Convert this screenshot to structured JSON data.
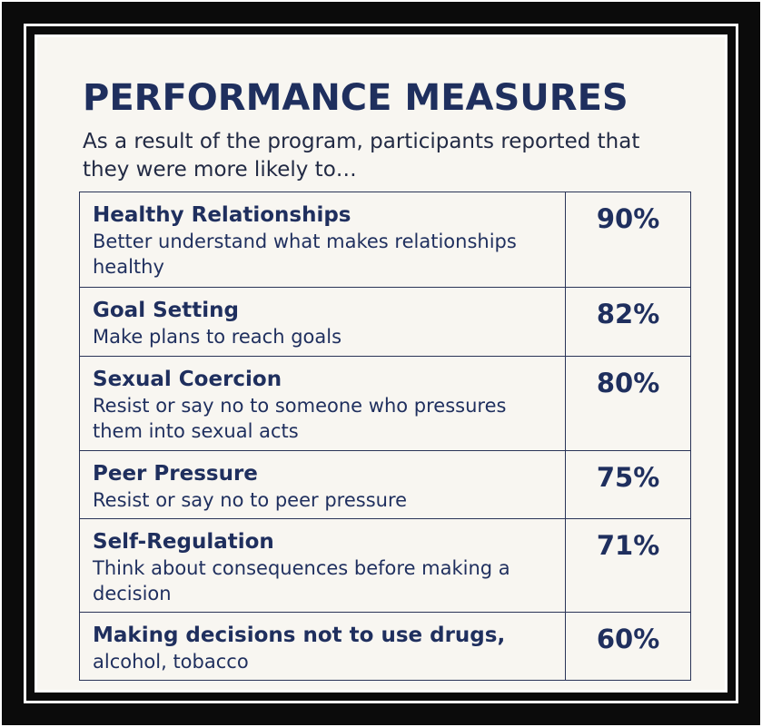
{
  "title": "PERFORMANCE MEASURES",
  "subtitle": "As a result of the program, participants reported that they were more likely to…",
  "colors": {
    "frame": "#0b0b0b",
    "background": "#f8f6f1",
    "text": "#1f2f5e",
    "border": "#2a3457"
  },
  "rows": [
    {
      "name": "Healthy Relationships",
      "description": "Better understand what makes relationships healthy",
      "percent": "90%"
    },
    {
      "name": "Goal Setting",
      "description": "Make plans to reach goals",
      "percent": "82%"
    },
    {
      "name": "Sexual Coercion",
      "description": "Resist or say no to someone who pressures them into sexual acts",
      "percent": "80%"
    },
    {
      "name": "Peer Pressure",
      "description": "Resist or say no to peer pressure",
      "percent": "75%"
    },
    {
      "name": "Self-Regulation",
      "description": "Think about consequences before making a decision",
      "percent": "71%"
    },
    {
      "name": "Making decisions not to use drugs,",
      "description": "alcohol, tobacco",
      "percent": "60%"
    }
  ]
}
